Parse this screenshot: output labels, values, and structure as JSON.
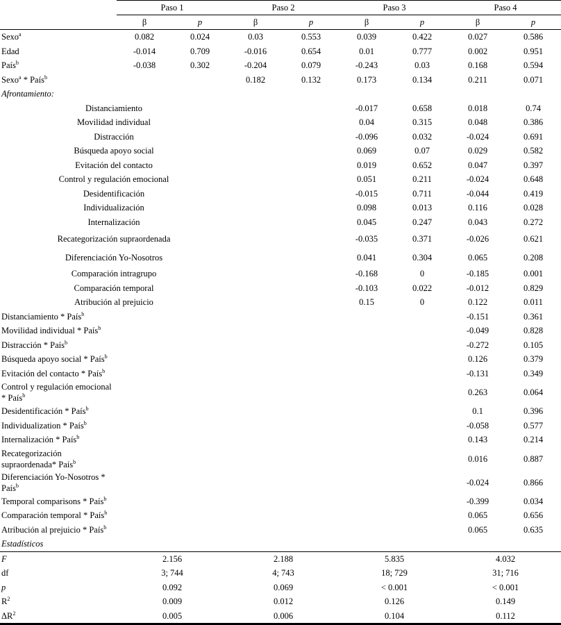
{
  "table": {
    "header": {
      "groups": [
        "Paso 1",
        "Paso 2",
        "Paso 3",
        "Paso 4"
      ],
      "beta": "β",
      "p": "p"
    },
    "rows": [
      {
        "label": [
          {
            "t": "Sexo"
          },
          {
            "t": "a",
            "sup": true
          }
        ],
        "style": "plain",
        "cells": [
          "0.082",
          "0.024",
          "0.03",
          "0.553",
          "0.039",
          "0.422",
          "0.027",
          "0.586"
        ]
      },
      {
        "label": [
          {
            "t": "Edad"
          }
        ],
        "style": "plain",
        "cells": [
          "-0.014",
          "0.709",
          "-0.016",
          "0.654",
          "0.01",
          "0.777",
          "0.002",
          "0.951"
        ]
      },
      {
        "label": [
          {
            "t": "País"
          },
          {
            "t": "b",
            "sup": true
          }
        ],
        "style": "plain",
        "cells": [
          "-0.038",
          "0.302",
          "-0.204",
          "0.079",
          "-0.243",
          "0.03",
          "0.168",
          "0.594"
        ]
      },
      {
        "label": [
          {
            "t": "Sexo"
          },
          {
            "t": "a",
            "sup": true
          },
          {
            "t": " * País"
          },
          {
            "t": "b",
            "sup": true
          }
        ],
        "style": "plain",
        "cells": [
          "",
          "",
          "0.182",
          "0.132",
          "0.173",
          "0.134",
          "0.211",
          "0.071"
        ]
      },
      {
        "label": [
          {
            "t": "Afrontamiento:"
          }
        ],
        "style": "section",
        "cells": [
          "",
          "",
          "",
          "",
          "",
          "",
          "",
          ""
        ]
      },
      {
        "label": [
          {
            "t": "Distanciamiento"
          }
        ],
        "style": "indent",
        "cells": [
          "",
          "",
          "",
          "",
          "-0.017",
          "0.658",
          "0.018",
          "0.74"
        ]
      },
      {
        "label": [
          {
            "t": "Movilidad individual"
          }
        ],
        "style": "indent",
        "cells": [
          "",
          "",
          "",
          "",
          "0.04",
          "0.315",
          "0.048",
          "0.386"
        ]
      },
      {
        "label": [
          {
            "t": "Distracción"
          }
        ],
        "style": "indent",
        "cells": [
          "",
          "",
          "",
          "",
          "-0.096",
          "0.032",
          "-0.024",
          "0.691"
        ]
      },
      {
        "label": [
          {
            "t": "Búsqueda apoyo social"
          }
        ],
        "style": "indent",
        "cells": [
          "",
          "",
          "",
          "",
          "0.069",
          "0.07",
          "0.029",
          "0.582"
        ]
      },
      {
        "label": [
          {
            "t": "Evitación del contacto"
          }
        ],
        "style": "indent",
        "cells": [
          "",
          "",
          "",
          "",
          "0.019",
          "0.652",
          "0.047",
          "0.397"
        ]
      },
      {
        "label": [
          {
            "t": "Control y regulación emocional"
          }
        ],
        "style": "indent",
        "cells": [
          "",
          "",
          "",
          "",
          "0.051",
          "0.211",
          "-0.024",
          "0.648"
        ]
      },
      {
        "label": [
          {
            "t": "Desidentificación"
          }
        ],
        "style": "indent",
        "cells": [
          "",
          "",
          "",
          "",
          "-0.015",
          "0.711",
          "-0.044",
          "0.419"
        ]
      },
      {
        "label": [
          {
            "t": "Individualización"
          }
        ],
        "style": "indent",
        "cells": [
          "",
          "",
          "",
          "",
          "0.098",
          "0.013",
          "0.116",
          "0.028"
        ]
      },
      {
        "label": [
          {
            "t": "Internalización"
          }
        ],
        "style": "indent",
        "cells": [
          "",
          "",
          "",
          "",
          "0.045",
          "0.247",
          "0.043",
          "0.272"
        ]
      },
      {
        "label": [
          {
            "t": "Recategorización supraordenada"
          }
        ],
        "style": "indent",
        "tall": true,
        "cells": [
          "",
          "",
          "",
          "",
          "-0.035",
          "0.371",
          "-0.026",
          "0.621"
        ]
      },
      {
        "label": [
          {
            "t": "Diferenciación Yo-Nosotros"
          }
        ],
        "style": "indent",
        "tall": true,
        "cells": [
          "",
          "",
          "",
          "",
          "0.041",
          "0.304",
          "0.065",
          "0.208"
        ]
      },
      {
        "label": [
          {
            "t": "Comparación intragrupo"
          }
        ],
        "style": "indent",
        "cells": [
          "",
          "",
          "",
          "",
          "-0.168",
          "0",
          "-0.185",
          "0.001"
        ]
      },
      {
        "label": [
          {
            "t": "Comparación temporal"
          }
        ],
        "style": "indent",
        "cells": [
          "",
          "",
          "",
          "",
          "-0.103",
          "0.022",
          "-0.012",
          "0.829"
        ]
      },
      {
        "label": [
          {
            "t": "Atribución al prejuicio"
          }
        ],
        "style": "indent",
        "cells": [
          "",
          "",
          "",
          "",
          "0.15",
          "0",
          "0.122",
          "0.011"
        ]
      },
      {
        "label": [
          {
            "t": "Distanciamiento * País"
          },
          {
            "t": "b",
            "sup": true
          }
        ],
        "style": "plain",
        "cells": [
          "",
          "",
          "",
          "",
          "",
          "",
          "-0.151",
          "0.361"
        ]
      },
      {
        "label": [
          {
            "t": "Movilidad individual * País"
          },
          {
            "t": "b",
            "sup": true
          }
        ],
        "style": "plain",
        "cells": [
          "",
          "",
          "",
          "",
          "",
          "",
          "-0.049",
          "0.828"
        ]
      },
      {
        "label": [
          {
            "t": "Distracción * País"
          },
          {
            "t": "b",
            "sup": true
          }
        ],
        "style": "plain",
        "cells": [
          "",
          "",
          "",
          "",
          "",
          "",
          "-0.272",
          "0.105"
        ]
      },
      {
        "label": [
          {
            "t": "Búsqueda apoyo social * País"
          },
          {
            "t": "b",
            "sup": true
          }
        ],
        "style": "plain",
        "cells": [
          "",
          "",
          "",
          "",
          "",
          "",
          "0.126",
          "0.379"
        ]
      },
      {
        "label": [
          {
            "t": "Evitación del contacto * País"
          },
          {
            "t": "b",
            "sup": true
          }
        ],
        "style": "plain",
        "cells": [
          "",
          "",
          "",
          "",
          "",
          "",
          "-0.131",
          "0.349"
        ]
      },
      {
        "label": [
          {
            "t": "Control y regulación emocional * País"
          },
          {
            "t": "b",
            "sup": true
          }
        ],
        "style": "plain",
        "cells": [
          "",
          "",
          "",
          "",
          "",
          "",
          "0.263",
          "0.064"
        ]
      },
      {
        "label": [
          {
            "t": "Desidentificación * País"
          },
          {
            "t": "b",
            "sup": true
          }
        ],
        "style": "plain",
        "cells": [
          "",
          "",
          "",
          "",
          "",
          "",
          "0.1",
          "0.396"
        ]
      },
      {
        "label": [
          {
            "t": "Individualization * País"
          },
          {
            "t": "b",
            "sup": true
          }
        ],
        "style": "plain",
        "cells": [
          "",
          "",
          "",
          "",
          "",
          "",
          "-0.058",
          "0.577"
        ]
      },
      {
        "label": [
          {
            "t": "Internalización * País"
          },
          {
            "t": "b",
            "sup": true
          }
        ],
        "style": "plain",
        "cells": [
          "",
          "",
          "",
          "",
          "",
          "",
          "0.143",
          "0.214"
        ]
      },
      {
        "label": [
          {
            "t": "Recategorización supraordenada* País"
          },
          {
            "t": "b",
            "sup": true
          }
        ],
        "style": "plain",
        "cells": [
          "",
          "",
          "",
          "",
          "",
          "",
          "0.016",
          "0.887"
        ]
      },
      {
        "label": [
          {
            "t": "Diferenciación Yo-Nosotros * País"
          },
          {
            "t": "b",
            "sup": true
          }
        ],
        "style": "plain",
        "cells": [
          "",
          "",
          "",
          "",
          "",
          "",
          "-0.024",
          "0.866"
        ]
      },
      {
        "label": [
          {
            "t": "Temporal comparisons * País"
          },
          {
            "t": "b",
            "sup": true
          }
        ],
        "style": "plain",
        "cells": [
          "",
          "",
          "",
          "",
          "",
          "",
          "-0.399",
          "0.034"
        ]
      },
      {
        "label": [
          {
            "t": "Comparación temporal * País"
          },
          {
            "t": "b",
            "sup": true
          }
        ],
        "style": "plain",
        "cells": [
          "",
          "",
          "",
          "",
          "",
          "",
          "0.065",
          "0.656"
        ]
      },
      {
        "label": [
          {
            "t": "Atribución al prejuicio * País"
          },
          {
            "t": "b",
            "sup": true
          }
        ],
        "style": "plain",
        "cells": [
          "",
          "",
          "",
          "",
          "",
          "",
          "0.065",
          "0.635"
        ]
      },
      {
        "label": [
          {
            "t": "Estadísticos"
          }
        ],
        "style": "section",
        "cells": [
          "",
          "",
          "",
          "",
          "",
          "",
          "",
          ""
        ]
      }
    ],
    "stats": [
      {
        "label": [
          {
            "t": "F"
          }
        ],
        "italic": true,
        "values": [
          "2.156",
          "2.188",
          "5.835",
          "4.032"
        ]
      },
      {
        "label": [
          {
            "t": "df"
          }
        ],
        "italic": false,
        "values": [
          "3; 744",
          "4; 743",
          "18; 729",
          "31; 716"
        ]
      },
      {
        "label": [
          {
            "t": "p"
          }
        ],
        "italic": true,
        "values": [
          "0.092",
          "0.069",
          "< 0.001",
          "< 0.001"
        ]
      },
      {
        "label": [
          {
            "t": "R"
          },
          {
            "t": "2",
            "sup": true
          }
        ],
        "italic": false,
        "values": [
          "0.009",
          "0.012",
          "0.126",
          "0.149"
        ]
      },
      {
        "label": [
          {
            "t": "ΔR"
          },
          {
            "t": "2",
            "sup": true
          }
        ],
        "italic": false,
        "values": [
          "0.005",
          "0.006",
          "0.104",
          "0.112"
        ]
      }
    ]
  }
}
